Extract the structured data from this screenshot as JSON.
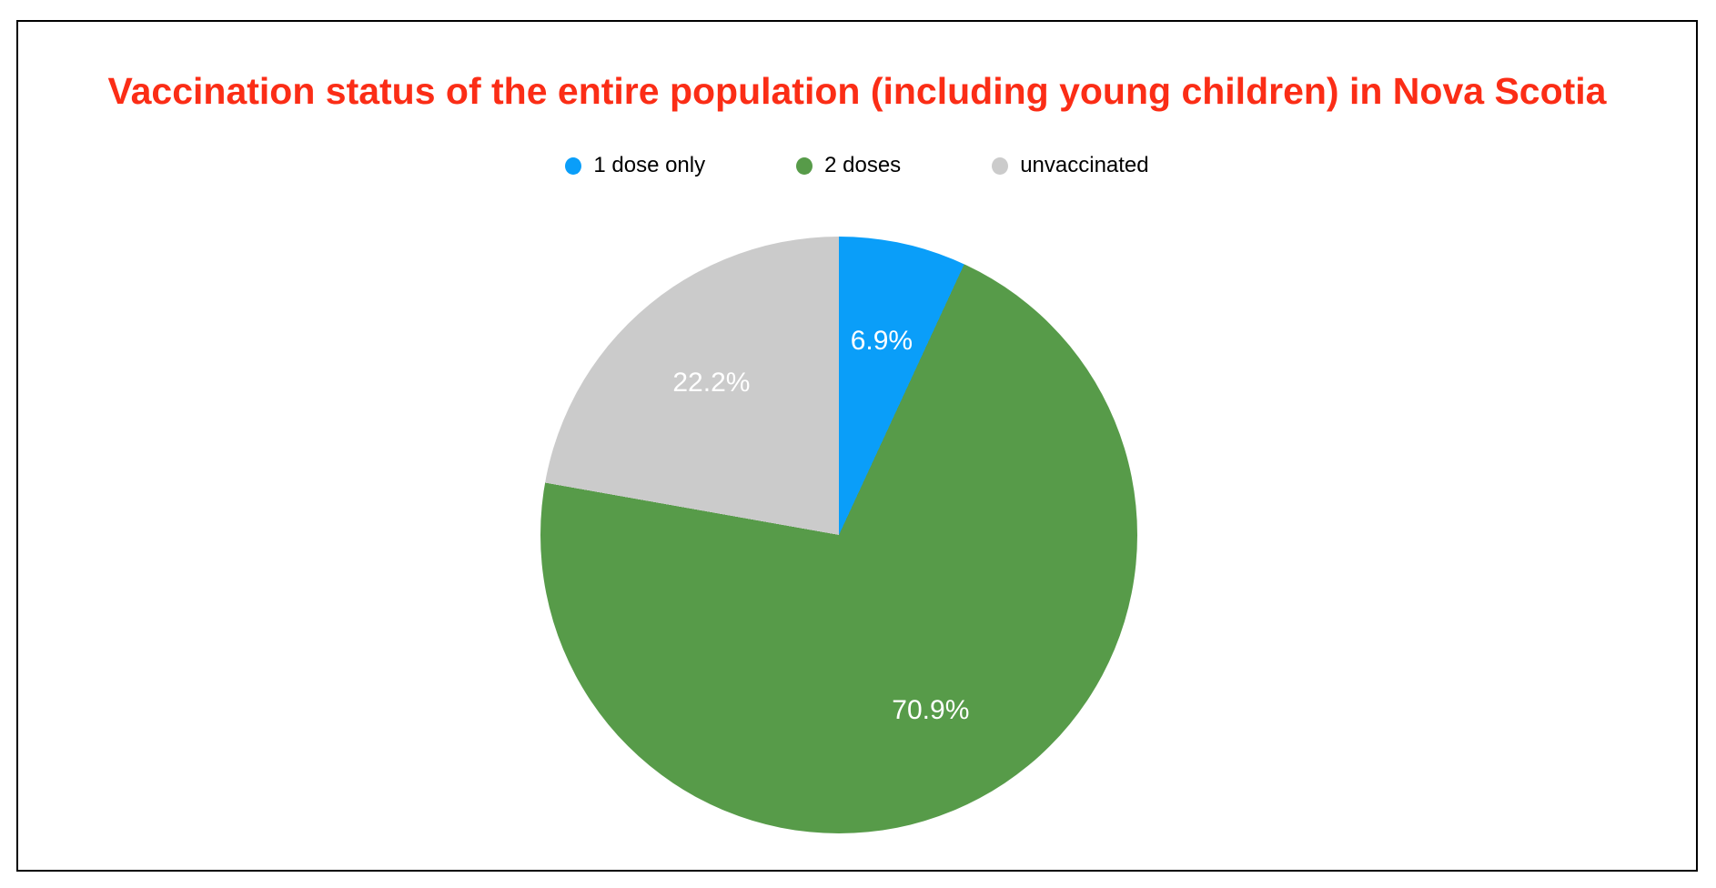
{
  "page": {
    "background": "#ffffff",
    "frame_border_color": "#000000"
  },
  "chart_data": {
    "type": "pie",
    "title": "Vaccination status of the entire population (including young children) in Nova Scotia",
    "title_color": "#fb2d16",
    "label_color": "#ffffff",
    "legend_position": "top",
    "start_angle_deg": 0,
    "direction": "clockwise",
    "slices": [
      {
        "label": "1 dose only",
        "value": 6.9,
        "display_value": "6.9%",
        "color": "#0a9ef9"
      },
      {
        "label": "2 doses",
        "value": 70.9,
        "display_value": "70.9%",
        "color": "#579b49"
      },
      {
        "label": "unvaccinated",
        "value": 22.2,
        "display_value": "22.2%",
        "color": "#cbcbcb"
      }
    ]
  }
}
